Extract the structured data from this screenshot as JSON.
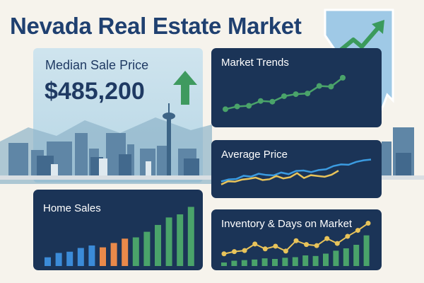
{
  "header": {
    "title": "Nevada Real Estate Market"
  },
  "median_panel": {
    "label": "Median Sale Price",
    "value": "$485,200",
    "trend": "up"
  },
  "cards": {
    "market_trends": {
      "title": "Market Trends"
    },
    "average_price": {
      "title": "Average Price"
    },
    "home_sales": {
      "title": "Home Sales"
    },
    "inventory": {
      "title": "Inventory & Days on Market"
    }
  },
  "colors": {
    "title": "#1f4070",
    "card_bg": "#1b3457",
    "accent_green": "#4aa36a",
    "line_blue": "#3b9be0",
    "line_yellow": "#e8c35a",
    "bar_orange": "#e9894a",
    "state_fill": "#9fc9e6"
  },
  "icons": [
    "nevada-state-icon",
    "trend-up-arrow-icon",
    "up-arrow-icon"
  ],
  "chart_data": [
    {
      "type": "line",
      "title": "Market Trends",
      "series": [
        {
          "values": [
            1,
            1.4,
            1.5,
            2.2,
            2.1,
            2.9,
            3.2,
            3.3,
            4.4,
            4.3,
            5.6
          ]
        }
      ]
    },
    {
      "type": "line",
      "title": "Average Price",
      "series": [
        {
          "values": [
            2,
            2.5,
            2.6,
            3.4,
            3.2,
            3.9,
            3.6,
            3.5,
            4.2,
            3.8,
            4.6,
            4.7,
            4.3,
            4.8,
            5.0,
            5.8,
            6.2,
            6.1,
            6.8,
            7.2,
            7.4
          ]
        },
        {
          "values": [
            1.6,
            2.4,
            2.3,
            2.8,
            3.0,
            3.3,
            2.7,
            2.9,
            3.7,
            3.1,
            3.4,
            4.4,
            3.2,
            3.9,
            3.7,
            3.5,
            4.0,
            5.0
          ]
        }
      ]
    },
    {
      "type": "bar",
      "title": "Home Sales",
      "values": [
        1.4,
        2.1,
        2.3,
        2.9,
        3.3,
        3.0,
        3.7,
        4.4,
        4.6,
        5.5,
        6.6,
        7.8,
        8.3,
        9.5
      ]
    },
    {
      "type": "bar",
      "title": "Inventory & Days on Market",
      "values": [
        0.6,
        0.9,
        1.0,
        1.1,
        1.3,
        1.2,
        1.4,
        1.5,
        1.8,
        1.7,
        2.1,
        2.6,
        3.0,
        3.6,
        5.2
      ],
      "line": [
        1.2,
        1.6,
        1.8,
        3.0,
        2.1,
        2.6,
        1.7,
        3.6,
        2.9,
        2.7,
        4.0,
        3.1,
        4.4,
        5.5,
        6.8
      ]
    }
  ]
}
